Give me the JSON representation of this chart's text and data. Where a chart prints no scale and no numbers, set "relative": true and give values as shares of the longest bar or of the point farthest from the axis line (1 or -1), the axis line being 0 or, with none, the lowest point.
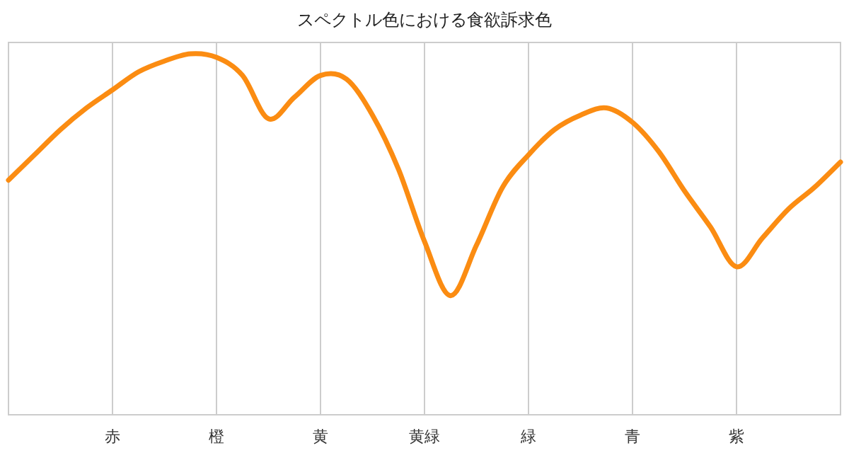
{
  "chart_data": {
    "type": "line",
    "title": "スペクトル色における食欲訴求色",
    "relative": true,
    "color": "#fb8c12",
    "grid": "x",
    "marker": "none",
    "categories": [
      null,
      null,
      null,
      null,
      "赤",
      null,
      null,
      null,
      "橙",
      null,
      null,
      null,
      "黄",
      null,
      null,
      null,
      "黄緑",
      null,
      null,
      null,
      "緑",
      null,
      null,
      null,
      "青",
      null,
      null,
      null,
      "紫",
      null,
      null,
      null,
      null
    ],
    "values": [
      0.65,
      0.72,
      0.79,
      0.85,
      0.9,
      0.95,
      0.98,
      1,
      0.99,
      0.94,
      0.82,
      0.88,
      0.94,
      0.93,
      0.83,
      0.68,
      0.48,
      0.33,
      0.47,
      0.63,
      0.72,
      0.79,
      0.83,
      0.85,
      0.81,
      0.73,
      0.62,
      0.52,
      0.41,
      0.49,
      0.57,
      0.63,
      0.7
    ]
  }
}
